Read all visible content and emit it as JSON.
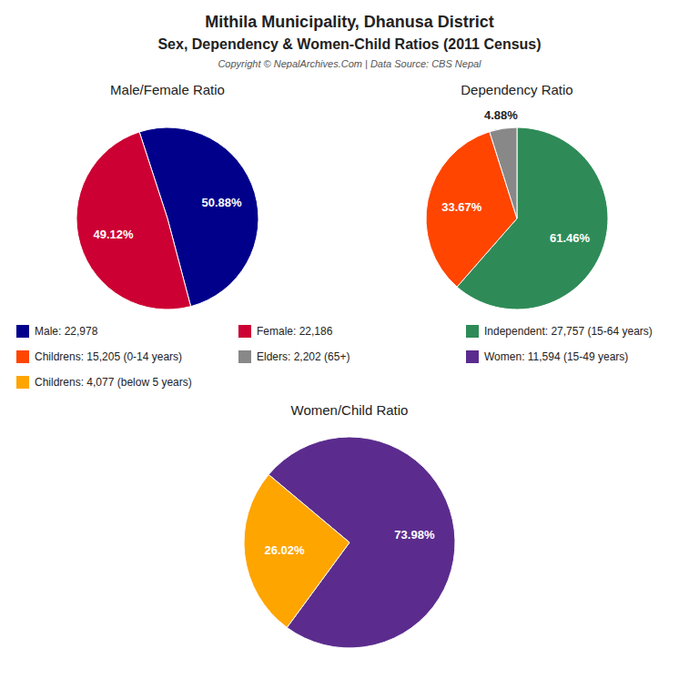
{
  "title": "Mithila Municipality, Dhanusa District",
  "subtitle": "Sex, Dependency & Women-Child Ratios (2011 Census)",
  "annotations": [
    "Copyright © NepalArchives.Com | Data Source: CBS Nepal"
  ],
  "chart_data": [
    {
      "type": "pie",
      "title": "Male/Female Ratio",
      "categories": [
        "Male: 22,978",
        "Female: 22,186"
      ],
      "values": [
        50.88,
        49.12
      ],
      "value_labels": [
        "50.88%",
        "49.12%"
      ],
      "colors": [
        "#00008B",
        "#CC0033"
      ],
      "data_labels": true
    },
    {
      "type": "pie",
      "title": "Dependency Ratio",
      "categories": [
        "Independent: 27,757 (15-64 years)",
        "Childrens: 15,205 (0-14 years)",
        "Elders: 2,202 (65+)"
      ],
      "values": [
        61.46,
        33.67,
        4.88
      ],
      "value_labels": [
        "61.46%",
        "33.67%",
        "4.88%"
      ],
      "colors": [
        "#2E8B57",
        "#FF4500",
        "#888888"
      ],
      "data_labels": true
    },
    {
      "type": "pie",
      "title": "Women/Child Ratio",
      "categories": [
        "Women: 11,594 (15-49 years)",
        "Childrens: 4,077 (below 5 years)"
      ],
      "values": [
        73.98,
        26.02
      ],
      "value_labels": [
        "73.98%",
        "26.02%"
      ],
      "colors": [
        "#5B2C8D",
        "#FFA500"
      ],
      "data_labels": true
    }
  ]
}
